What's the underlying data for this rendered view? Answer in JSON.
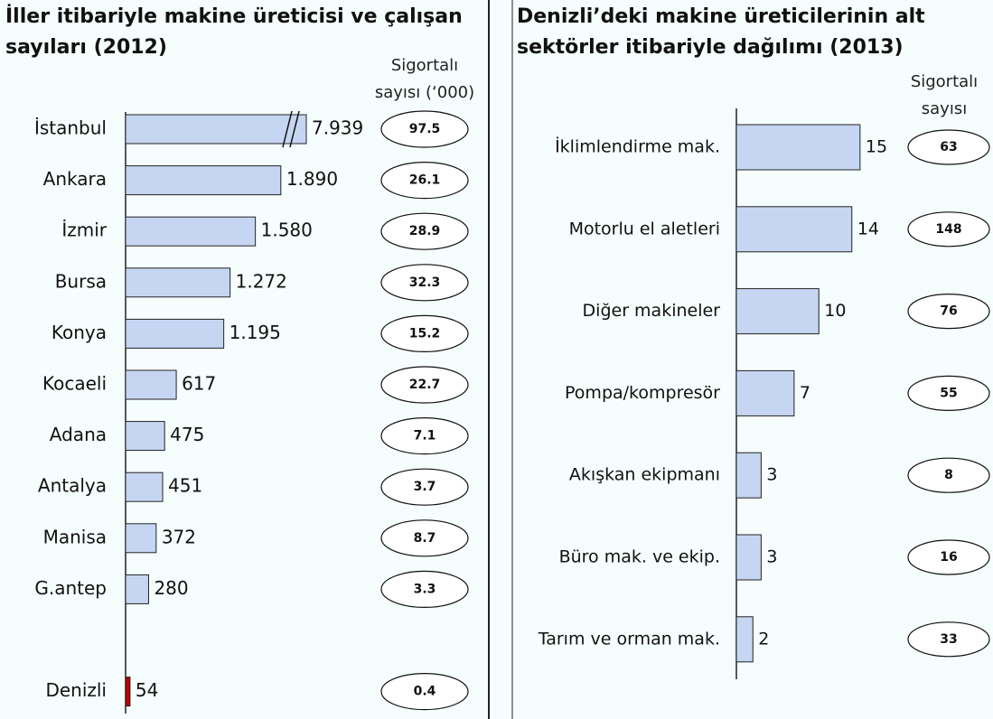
{
  "chart_data": [
    {
      "type": "barh",
      "title": "İller itibariyle makine üreticisi ve çalışan sayıları (2012)",
      "categories": [
        "İstanbul",
        "Ankara",
        "İzmir",
        "Bursa",
        "Konya",
        "Kocaeli",
        "Adana",
        "Antalya",
        "Manisa",
        "G.antep",
        null,
        "Denizli"
      ],
      "values": [
        7939,
        1890,
        1580,
        1272,
        1195,
        617,
        475,
        451,
        372,
        280,
        null,
        54
      ],
      "value_labels": [
        "7.939",
        "1.890",
        "1.580",
        "1.272",
        "1.195",
        "617",
        "475",
        "451",
        "372",
        "280",
        null,
        "54"
      ],
      "colors": [
        "#c6d6f2",
        "#c6d6f2",
        "#c6d6f2",
        "#c6d6f2",
        "#c6d6f2",
        "#c6d6f2",
        "#c6d6f2",
        "#c6d6f2",
        "#c6d6f2",
        "#c6d6f2",
        null,
        "#c00000"
      ],
      "xlim": [
        0,
        2200
      ],
      "axis_break": true,
      "side_column": {
        "title": "Sigortalı sayısı (‘000)",
        "values": [
          97.5,
          26.1,
          28.9,
          32.3,
          15.2,
          22.7,
          7.1,
          3.7,
          8.7,
          3.3,
          null,
          0.4
        ]
      }
    },
    {
      "type": "barh",
      "title": "Denizli’deki makine üreticilerinin alt sektörler itibariyle dağılımı (2013)",
      "categories": [
        "İklimlendirme mak.",
        "Motorlu el aletleri",
        "Diğer makineler",
        "Pompa/kompresör",
        "Akışkan ekipmanı",
        "Büro mak. ve ekip.",
        "Tarım ve orman mak."
      ],
      "values": [
        15,
        14,
        10,
        7,
        3,
        3,
        2
      ],
      "color": "#c6d6f2",
      "xlim": [
        0,
        16
      ],
      "side_column": {
        "title": "Sigortalı sayısı",
        "values": [
          63,
          148,
          76,
          55,
          8,
          16,
          33
        ]
      }
    }
  ]
}
